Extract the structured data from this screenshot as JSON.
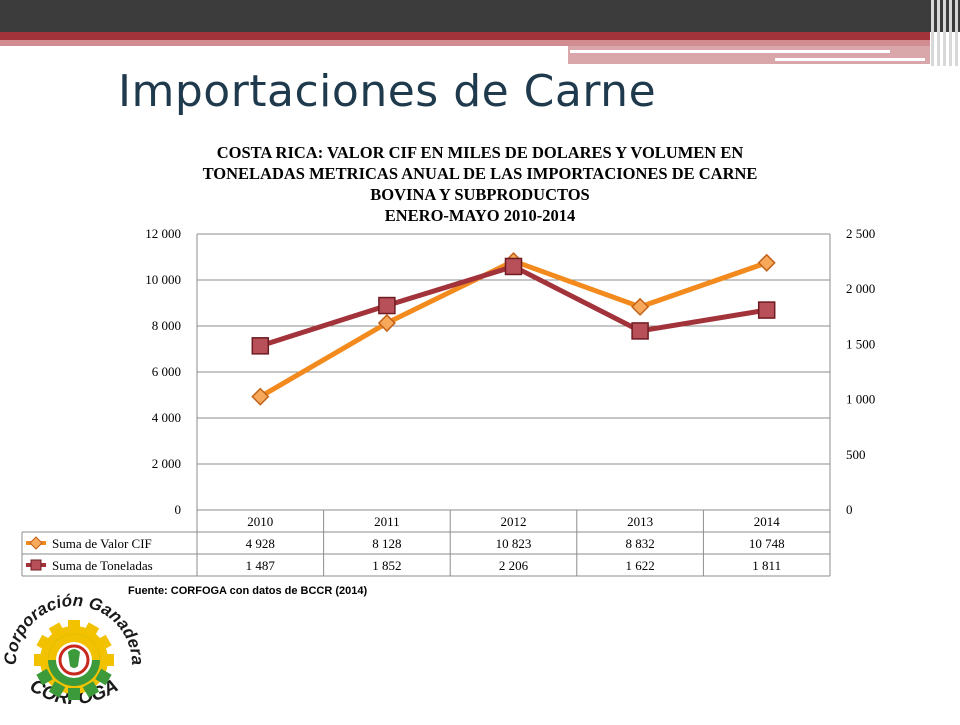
{
  "page_title": "Importaciones de Carne",
  "chart_data": {
    "type": "line",
    "title": "COSTA RICA: VALOR CIF EN MILES DE DOLARES Y VOLUMEN EN TONELADAS METRICAS ANUAL DE LAS IMPORTACIONES DE CARNE BOVINA Y SUBPRODUCTOS",
    "title_lines": [
      "COSTA RICA: VALOR CIF EN MILES DE DOLARES Y VOLUMEN EN",
      "TONELADAS METRICAS ANUAL DE LAS IMPORTACIONES DE CARNE",
      "BOVINA Y SUBPRODUCTOS"
    ],
    "subtitle": "ENERO-MAYO 2010-2014",
    "categories": [
      "2010",
      "2011",
      "2012",
      "2013",
      "2014"
    ],
    "series": [
      {
        "name": "Suma de Valor CIF",
        "values": [
          4928,
          8128,
          10823,
          8832,
          10748
        ],
        "labels": [
          "4 928",
          "8 128",
          "10 823",
          "8 832",
          "10 748"
        ],
        "axis": "left",
        "color": "#f28a1e",
        "marker": "diamond"
      },
      {
        "name": "Suma de Toneladas",
        "values": [
          1487,
          1852,
          2206,
          1622,
          1811
        ],
        "labels": [
          "1 487",
          "1 852",
          "2 206",
          "1 622",
          "1 811"
        ],
        "axis": "right",
        "color": "#a3333a",
        "marker": "square"
      }
    ],
    "y_left": {
      "ylim": [
        0,
        12000
      ],
      "ticks": [
        0,
        2000,
        4000,
        6000,
        8000,
        10000,
        12000
      ],
      "tick_labels": [
        "0",
        "2 000",
        "4 000",
        "6 000",
        "8 000",
        "10 000",
        "12 000"
      ]
    },
    "y_right": {
      "ylim": [
        0,
        2500
      ],
      "ticks": [
        0,
        500,
        1000,
        1500,
        2000,
        2500
      ],
      "tick_labels": [
        "0",
        "500",
        "1 000",
        "1 500",
        "2 000",
        "2 500"
      ]
    },
    "grid": true,
    "legend": "data-table"
  },
  "source_note": "Fuente: CORFOGA con datos de BCCR (2014)",
  "logo": {
    "text_top": "Corporación Ganadera",
    "text_bottom": "CORFOGA",
    "colors": {
      "gear": "#f2c200",
      "green": "#3c9a3a",
      "ring": "#c8281e"
    }
  }
}
